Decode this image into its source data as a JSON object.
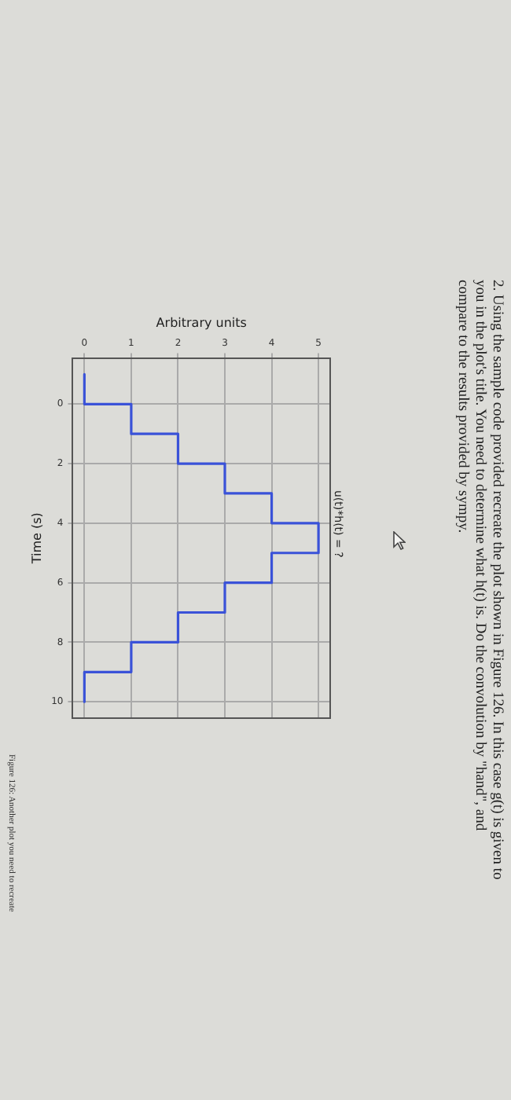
{
  "chart_data": {
    "type": "line",
    "title": "u(t)*h(t) = ?",
    "xlabel": "Arbitrary units",
    "ylabel": "Time (s)",
    "annotations": [
      "2. Using the sample code provided recreate the plot shown in Figure 126. In this case g(t) is given to you in the plot's title. You need to determine what h(t) is. Do the convolution by \"hand\", and compare to the results provided by sympy.",
      "Figure 126: Another plot you need to recreate"
    ],
    "x": [
      0,
      0,
      1,
      1,
      2,
      2,
      3,
      3,
      4,
      4,
      5,
      5,
      4,
      4,
      3,
      3,
      2,
      2,
      1,
      1,
      0,
      0
    ],
    "series": [
      {
        "color": "#3a52d8",
        "values": [
          -1,
          0,
          0,
          1,
          1,
          2,
          2,
          3,
          3,
          4,
          4,
          5,
          5,
          6,
          6,
          7,
          7,
          8,
          8,
          9,
          9,
          10
        ]
      }
    ],
    "xlim": [
      -0.25,
      5.25
    ],
    "xticks": [
      0,
      1,
      2,
      3,
      4,
      5
    ],
    "ylim": [
      10.55,
      -1.55
    ],
    "yticks": [
      0,
      2,
      4,
      6,
      8,
      10
    ],
    "grid": true,
    "legend": false,
    "marker": "none",
    "line_style": "solid"
  }
}
